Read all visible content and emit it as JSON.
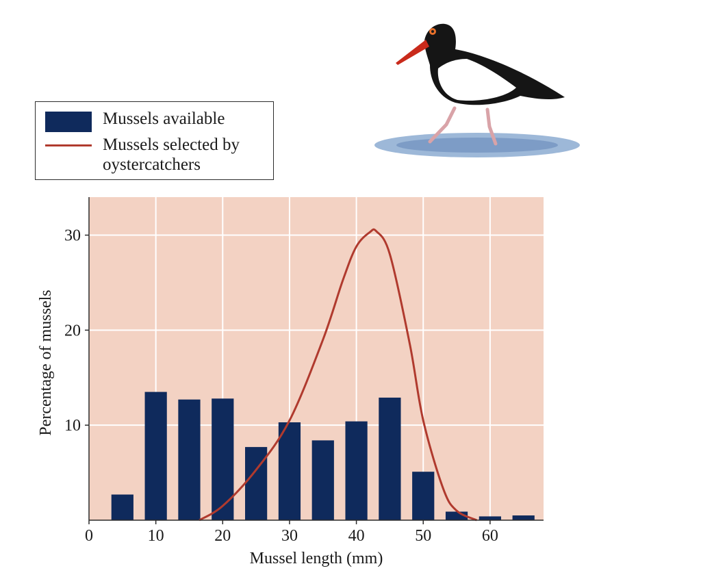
{
  "legend": {
    "available_label": "Mussels available",
    "selected_label": "Mussels selected by oystercatchers"
  },
  "colors": {
    "plot_background": "#f3d2c3",
    "bars": "#0f2a5c",
    "curve": "#b03a2e",
    "grid": "#ffffff"
  },
  "illustration": {
    "icon": "oystercatcher-bird-icon"
  },
  "chart_data": {
    "type": "bar",
    "title": "",
    "xlabel": "Mussel length (mm)",
    "ylabel": "Percentage of mussels",
    "xlim": [
      0,
      68
    ],
    "ylim": [
      0,
      34
    ],
    "xticks": [
      0,
      10,
      20,
      30,
      40,
      50,
      60
    ],
    "yticks": [
      10,
      20,
      30
    ],
    "grid": true,
    "legend_position": "top-left",
    "series": [
      {
        "name": "Mussels available",
        "type": "bar",
        "x": [
          5,
          10,
          15,
          20,
          25,
          30,
          35,
          40,
          45,
          50,
          55,
          60,
          65
        ],
        "values": [
          2.7,
          13.5,
          12.7,
          12.8,
          7.7,
          10.3,
          8.4,
          10.4,
          12.9,
          5.1,
          0.9,
          0.4,
          0.5
        ]
      },
      {
        "name": "Mussels selected by oystercatchers",
        "type": "line",
        "x": [
          16.5,
          20,
          25,
          30,
          35,
          38,
          40,
          42,
          43,
          45,
          48,
          50,
          53,
          55,
          58
        ],
        "values": [
          0,
          1.5,
          5.3,
          10.5,
          19,
          25.3,
          28.8,
          30.3,
          30.4,
          28,
          18.5,
          10.5,
          3.3,
          1,
          0
        ]
      }
    ]
  }
}
